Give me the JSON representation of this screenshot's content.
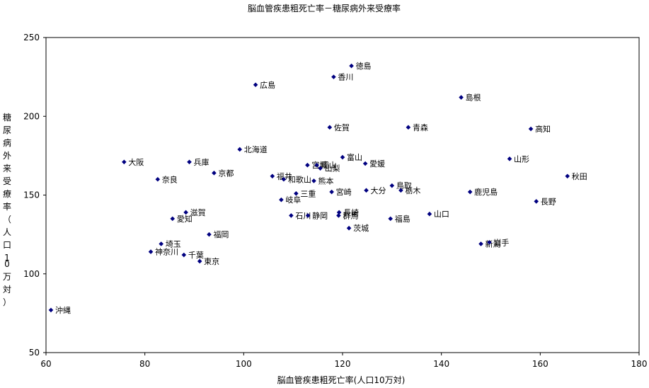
{
  "chart_data": {
    "type": "scatter",
    "title": "脳血管疾患粗死亡率－糖尿病外来受療率",
    "xlabel": "脳血管疾患粗死亡率(人口10万対)",
    "ylabel": "糖尿病外来受療率（人口10万対）",
    "xlim": [
      60,
      180
    ],
    "ylim": [
      50,
      250
    ],
    "xticks": [
      60,
      80,
      100,
      120,
      140,
      160,
      180
    ],
    "yticks": [
      50,
      100,
      150,
      200,
      250
    ],
    "grid": false,
    "legend": "none",
    "marker_color": "#000080",
    "points": [
      {
        "label": "徳島",
        "x": 121.8,
        "y": 232
      },
      {
        "label": "香川",
        "x": 118.2,
        "y": 225
      },
      {
        "label": "広島",
        "x": 102.4,
        "y": 220
      },
      {
        "label": "島根",
        "x": 144.0,
        "y": 212
      },
      {
        "label": "佐賀",
        "x": 117.4,
        "y": 193
      },
      {
        "label": "青森",
        "x": 133.3,
        "y": 193
      },
      {
        "label": "高知",
        "x": 158.1,
        "y": 192
      },
      {
        "label": "北海道",
        "x": 99.2,
        "y": 179
      },
      {
        "label": "富山",
        "x": 120.0,
        "y": 174
      },
      {
        "label": "山形",
        "x": 153.8,
        "y": 173
      },
      {
        "label": "大阪",
        "x": 75.8,
        "y": 171
      },
      {
        "label": "兵庫",
        "x": 89.0,
        "y": 171
      },
      {
        "label": "愛媛",
        "x": 124.6,
        "y": 170
      },
      {
        "label": "宮城",
        "x": 112.9,
        "y": 169
      },
      {
        "label": "岡山",
        "x": 114.8,
        "y": 169
      },
      {
        "label": "山梨",
        "x": 115.5,
        "y": 167
      },
      {
        "label": "京都",
        "x": 94.0,
        "y": 164
      },
      {
        "label": "福井",
        "x": 105.8,
        "y": 162
      },
      {
        "label": "秋田",
        "x": 165.5,
        "y": 162
      },
      {
        "label": "奈良",
        "x": 82.6,
        "y": 160
      },
      {
        "label": "和歌山",
        "x": 108.1,
        "y": 160
      },
      {
        "label": "熊本",
        "x": 114.2,
        "y": 159
      },
      {
        "label": "鳥取",
        "x": 130.0,
        "y": 156
      },
      {
        "label": "大分",
        "x": 124.8,
        "y": 153
      },
      {
        "label": "栃木",
        "x": 131.8,
        "y": 153
      },
      {
        "label": "鹿児島",
        "x": 145.8,
        "y": 152
      },
      {
        "label": "宮崎",
        "x": 117.8,
        "y": 152
      },
      {
        "label": "三重",
        "x": 110.6,
        "y": 151
      },
      {
        "label": "岐阜",
        "x": 107.6,
        "y": 147
      },
      {
        "label": "長野",
        "x": 159.2,
        "y": 146
      },
      {
        "label": "滋賀",
        "x": 88.3,
        "y": 139
      },
      {
        "label": "長崎",
        "x": 119.3,
        "y": 139
      },
      {
        "label": "山口",
        "x": 137.6,
        "y": 138
      },
      {
        "label": "石川",
        "x": 109.6,
        "y": 137
      },
      {
        "label": "静岡",
        "x": 113.0,
        "y": 137
      },
      {
        "label": "群馬",
        "x": 119.2,
        "y": 137
      },
      {
        "label": "愛知",
        "x": 85.6,
        "y": 135
      },
      {
        "label": "福島",
        "x": 129.7,
        "y": 135
      },
      {
        "label": "茨城",
        "x": 121.3,
        "y": 129
      },
      {
        "label": "福岡",
        "x": 93.0,
        "y": 125
      },
      {
        "label": "新潟",
        "x": 148.0,
        "y": 119
      },
      {
        "label": "岩手",
        "x": 149.7,
        "y": 120
      },
      {
        "label": "埼玉",
        "x": 83.3,
        "y": 119
      },
      {
        "label": "神奈川",
        "x": 81.2,
        "y": 114
      },
      {
        "label": "千葉",
        "x": 87.9,
        "y": 112
      },
      {
        "label": "東京",
        "x": 91.1,
        "y": 108
      },
      {
        "label": "沖縄",
        "x": 61.0,
        "y": 77
      }
    ]
  }
}
